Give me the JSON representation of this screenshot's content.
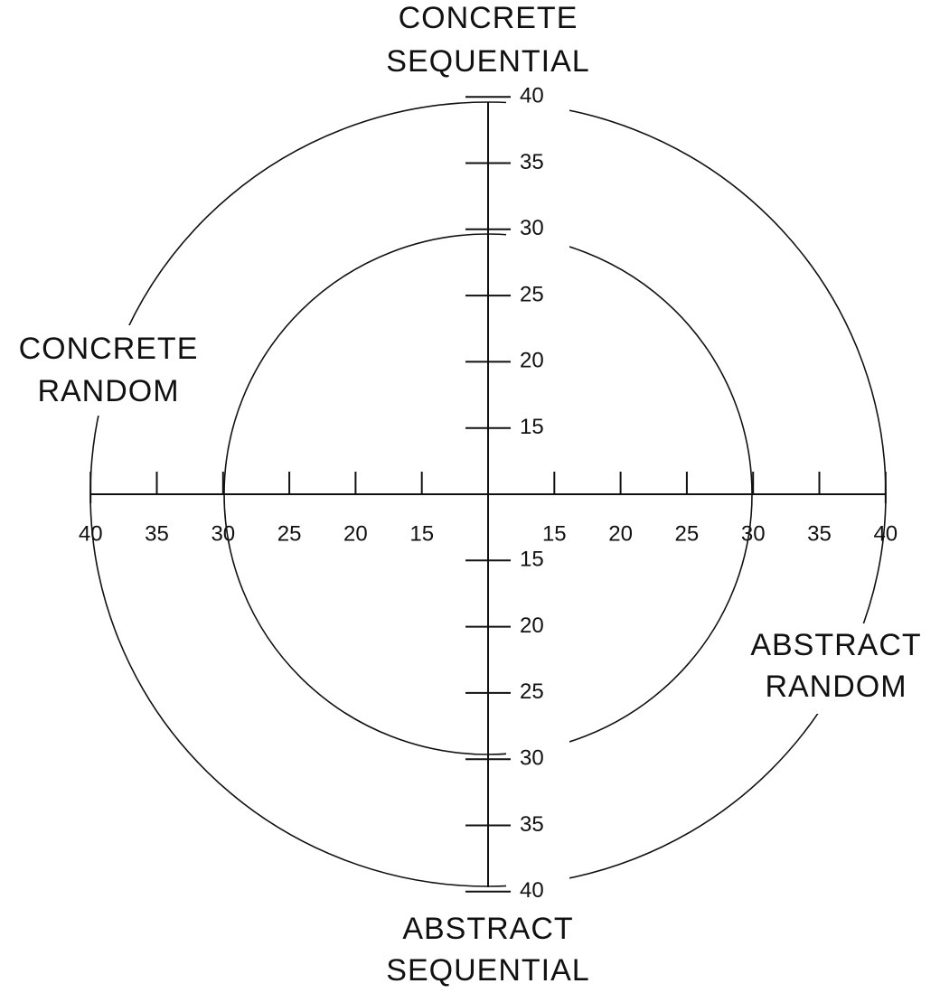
{
  "quadrants": {
    "top": [
      "CONCRETE",
      "SEQUENTIAL"
    ],
    "left": [
      "CONCRETE",
      "RANDOM"
    ],
    "right": [
      "ABSTRACT",
      "RANDOM"
    ],
    "bottom": [
      "ABSTRACT",
      "SEQUENTIAL"
    ]
  },
  "axes": {
    "up": [
      15,
      20,
      25,
      30,
      35,
      40
    ],
    "down": [
      15,
      20,
      25,
      30,
      35,
      40
    ],
    "left": [
      15,
      20,
      25,
      30,
      35,
      40
    ],
    "right": [
      15,
      20,
      25,
      30,
      35,
      40
    ]
  }
}
